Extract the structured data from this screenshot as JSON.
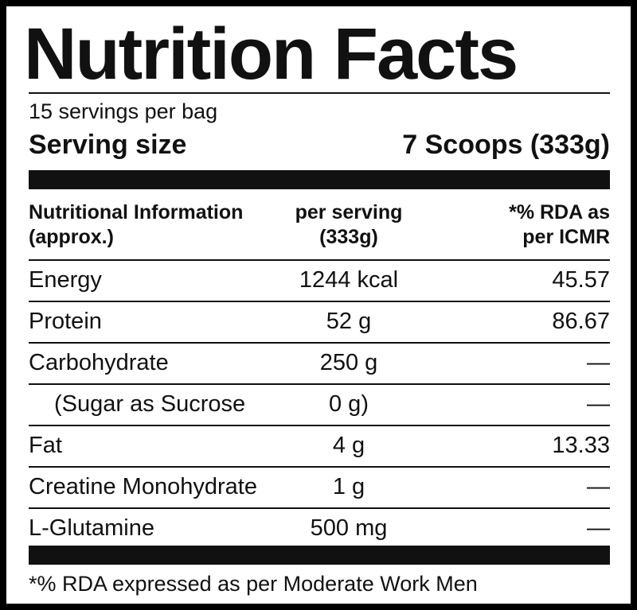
{
  "label": {
    "title": "Nutrition Facts",
    "servings_per_container": "15 servings per bag",
    "serving_size_label": "Serving size",
    "serving_size_value": "7 Scoops (333g)"
  },
  "table": {
    "headers": {
      "nutrient_line1": "Nutritional Information",
      "nutrient_line2": "(approx.)",
      "per_serving_line1": "per serving",
      "per_serving_line2": "(333g)",
      "rda_line1": "*% RDA as",
      "rda_line2": "per ICMR"
    },
    "rows": [
      {
        "name": "Energy",
        "per_serving": "1244 kcal",
        "rda": "45.57"
      },
      {
        "name": "Protein",
        "per_serving": "52 g",
        "rda": "86.67"
      },
      {
        "name": "Carbohydrate",
        "per_serving": "250 g",
        "rda": "—"
      },
      {
        "name": "(Sugar as Sucrose",
        "per_serving": "0 g)",
        "rda": "—"
      },
      {
        "name": "Fat",
        "per_serving": "4 g",
        "rda": "13.33"
      },
      {
        "name": "Creatine Monohydrate",
        "per_serving": "1 g",
        "rda": "—"
      },
      {
        "name": "L-Glutamine",
        "per_serving": "500 mg",
        "rda": "—"
      }
    ]
  },
  "footnote": "*% RDA expressed as per Moderate Work Men"
}
